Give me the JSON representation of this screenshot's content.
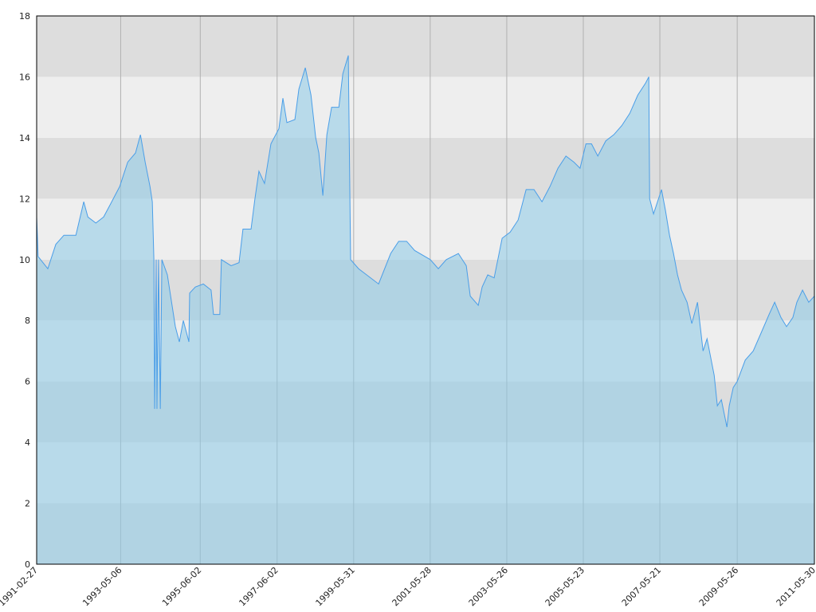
{
  "chart_data": {
    "type": "area",
    "x": [
      "1991-02-27",
      "1991-03-13",
      "1991-06-13",
      "1991-08-28",
      "1991-11-13",
      "1992-03-06",
      "1992-05-20",
      "1992-06-28",
      "1992-09-12",
      "1992-11-25",
      "1993-02-10",
      "1993-04-27",
      "1993-07-12",
      "1993-09-24",
      "1993-11-10",
      "1993-12-25",
      "1994-02-09",
      "1994-03-03",
      "1994-03-18",
      "1994-03-25",
      "1994-04-09",
      "1994-04-16",
      "1994-05-01",
      "1994-05-18",
      "1994-06-02",
      "1994-07-24",
      "1994-10-08",
      "1994-11-15",
      "1994-12-23",
      "1995-02-14",
      "1995-02-21",
      "1995-04-16",
      "1995-07-01",
      "1995-09-13",
      "1995-10-06",
      "1995-12-05",
      "1995-12-20",
      "1996-03-21",
      "1996-06-05",
      "1996-07-12",
      "1996-09-27",
      "1996-11-03",
      "1996-12-11",
      "1997-02-02",
      "1997-04-04",
      "1997-06-19",
      "1997-07-27",
      "1997-09-03",
      "1997-11-18",
      "1997-12-26",
      "1998-02-25",
      "1998-04-20",
      "1998-06-04",
      "1998-07-04",
      "1998-08-11",
      "1998-09-18",
      "1998-11-02",
      "1999-01-10",
      "1999-02-17",
      "1999-04-10",
      "1999-05-02",
      "1999-07-17",
      "1999-10-01",
      "2000-01-23",
      "2000-05-17",
      "2000-08-01",
      "2000-10-16",
      "2000-12-31",
      "2001-05-29",
      "2001-08-13",
      "2001-10-28",
      "2002-02-20",
      "2002-05-06",
      "2002-06-13",
      "2002-08-28",
      "2002-10-04",
      "2002-11-26",
      "2003-01-26",
      "2003-04-12",
      "2003-06-27",
      "2003-09-11",
      "2003-11-26",
      "2004-02-09",
      "2004-04-25",
      "2004-07-10",
      "2004-09-24",
      "2004-12-09",
      "2005-02-23",
      "2005-04-22",
      "2005-06-17",
      "2005-08-09",
      "2005-10-08",
      "2005-12-23",
      "2006-03-09",
      "2006-05-24",
      "2006-08-08",
      "2006-10-23",
      "2007-01-06",
      "2007-02-05",
      "2007-02-13",
      "2007-03-22",
      "2007-06-06",
      "2007-07-14",
      "2007-08-21",
      "2007-09-28",
      "2007-11-05",
      "2007-12-13",
      "2008-02-04",
      "2008-03-20",
      "2008-05-13",
      "2008-07-05",
      "2008-08-12",
      "2008-10-19",
      "2008-11-18",
      "2008-12-26",
      "2009-02-17",
      "2009-03-11",
      "2009-04-18",
      "2009-05-26",
      "2009-08-10",
      "2009-10-25",
      "2010-01-09",
      "2010-03-25",
      "2010-05-17",
      "2010-07-16",
      "2010-09-07",
      "2010-11-06",
      "2010-12-14",
      "2011-02-06",
      "2011-04-06",
      "2011-05-30"
    ],
    "values": [
      11.4,
      10.1,
      9.7,
      10.5,
      10.8,
      10.8,
      11.9,
      11.4,
      11.2,
      11.4,
      11.9,
      12.4,
      13.2,
      13.5,
      14.1,
      13.2,
      12.4,
      11.9,
      10.0,
      5.1,
      10.0,
      5.1,
      10.0,
      5.1,
      10.0,
      9.5,
      7.8,
      7.3,
      8.0,
      7.3,
      8.9,
      9.1,
      9.2,
      9.0,
      8.2,
      8.2,
      10.0,
      9.8,
      9.9,
      11.0,
      11.0,
      12.0,
      12.9,
      12.5,
      13.8,
      14.3,
      15.3,
      14.5,
      14.6,
      15.6,
      16.3,
      15.4,
      14.0,
      13.5,
      12.1,
      14.1,
      15.0,
      15.0,
      16.1,
      16.7,
      10.0,
      9.7,
      9.5,
      9.2,
      10.2,
      10.6,
      10.6,
      10.3,
      10.0,
      9.7,
      10.0,
      10.2,
      9.8,
      8.8,
      8.5,
      9.1,
      9.5,
      9.4,
      10.7,
      10.9,
      11.3,
      12.3,
      12.3,
      11.9,
      12.4,
      13.0,
      13.4,
      13.2,
      13.0,
      13.8,
      13.8,
      13.4,
      13.9,
      14.1,
      14.4,
      14.8,
      15.4,
      15.8,
      16.0,
      12.0,
      11.5,
      12.3,
      11.6,
      10.8,
      10.2,
      9.5,
      9.0,
      8.6,
      7.9,
      8.6,
      7.0,
      7.4,
      6.2,
      5.2,
      5.4,
      4.5,
      5.2,
      5.8,
      6.0,
      6.7,
      7.0,
      7.6,
      8.2,
      8.6,
      8.1,
      7.8,
      8.1,
      8.6,
      9.0,
      8.6,
      8.8
    ],
    "xlim": [
      "1991-02-27",
      "2011-05-30"
    ],
    "xticks": [
      "1991-02-27",
      "1993-05-06",
      "1995-06-02",
      "1997-06-02",
      "1999-05-31",
      "2001-05-28",
      "2003-05-26",
      "2005-05-23",
      "2007-05-21",
      "2009-05-26",
      "2011-05-30"
    ],
    "ylim": [
      0,
      18
    ],
    "yticks": [
      0,
      2,
      4,
      6,
      8,
      10,
      12,
      14,
      16,
      18
    ],
    "color": "#4a9ee8",
    "area_color": "#8ccbe8",
    "grid": true
  }
}
